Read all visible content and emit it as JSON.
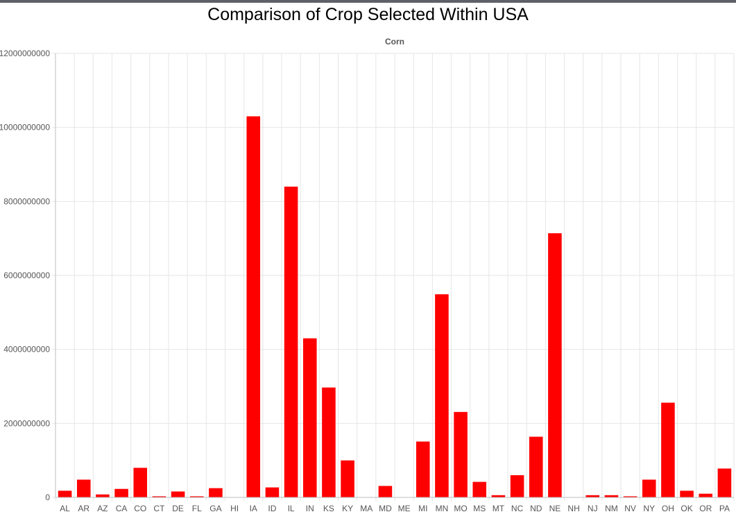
{
  "page": {
    "title": "Comparison of Crop Selected Within USA"
  },
  "colors": {
    "bar": "#ff0000",
    "grid": "#e6e6e6",
    "axis": "#bdbdbd",
    "tick_text": "#555555"
  },
  "chart_data": {
    "type": "bar",
    "title": "",
    "xlabel": "",
    "ylabel": "",
    "grid": true,
    "ylim": [
      0,
      12000000000
    ],
    "yticks": [
      0,
      2000000000,
      4000000000,
      6000000000,
      8000000000,
      10000000000,
      12000000000
    ],
    "ytick_labels": [
      "0",
      "2000000000",
      "4000000000",
      "6000000000",
      "8000000000",
      "10000000000",
      "12000000000"
    ],
    "categories": [
      "AL",
      "AR",
      "AZ",
      "CA",
      "CO",
      "CT",
      "DE",
      "FL",
      "GA",
      "HI",
      "IA",
      "ID",
      "IL",
      "IN",
      "KS",
      "KY",
      "MA",
      "MD",
      "ME",
      "MI",
      "MN",
      "MO",
      "MS",
      "MT",
      "NC",
      "ND",
      "NE",
      "NH",
      "NJ",
      "NM",
      "NV",
      "NY",
      "OH",
      "OK",
      "OR",
      "PA"
    ],
    "series": [
      {
        "name": "Corn",
        "values": [
          180000000,
          480000000,
          80000000,
          230000000,
          800000000,
          30000000,
          160000000,
          30000000,
          250000000,
          0,
          10300000000,
          270000000,
          8400000000,
          4300000000,
          2970000000,
          1000000000,
          0,
          310000000,
          0,
          1510000000,
          5490000000,
          2310000000,
          420000000,
          60000000,
          600000000,
          1640000000,
          7140000000,
          0,
          60000000,
          60000000,
          30000000,
          480000000,
          2560000000,
          180000000,
          100000000,
          780000000
        ]
      }
    ]
  }
}
